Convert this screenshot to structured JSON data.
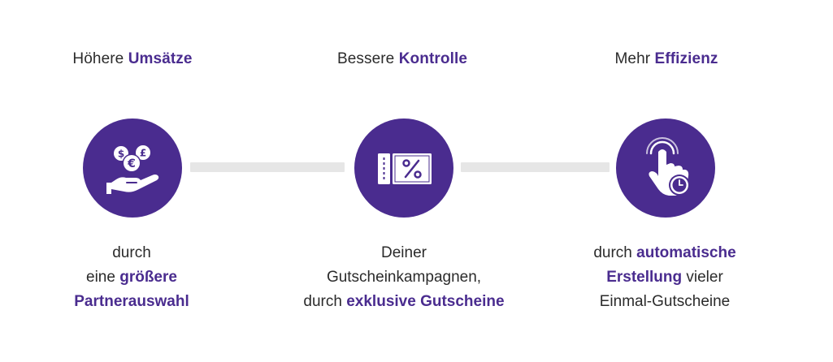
{
  "colors": {
    "accent": "#4a2c8f",
    "connector": "#e6e6e6",
    "text": "#2b2b2b"
  },
  "columns": [
    {
      "heading_plain": "Höhere ",
      "heading_bold": "Umsätze",
      "icon": "hand-coins-icon",
      "desc": {
        "line1": "durch",
        "line2_plain": "eine ",
        "line2_bold": "größere",
        "line3_bold": "Partnerauswahl"
      }
    },
    {
      "heading_plain": "Bessere ",
      "heading_bold": "Kontrolle",
      "icon": "voucher-percent-icon",
      "desc": {
        "line1": "Deiner",
        "line2": "Gutscheinkampagnen,",
        "line3_plain": "durch ",
        "line3_bold": "exklusive Gutscheine"
      }
    },
    {
      "heading_plain": "Mehr ",
      "heading_bold": "Effizienz",
      "icon": "touch-timer-icon",
      "desc": {
        "line1_plain": "durch ",
        "line1_bold": "automatische",
        "line2_bold": "Erstellung",
        "line2_plain": " vieler",
        "line3": "Einmal-Gutscheine"
      }
    }
  ]
}
